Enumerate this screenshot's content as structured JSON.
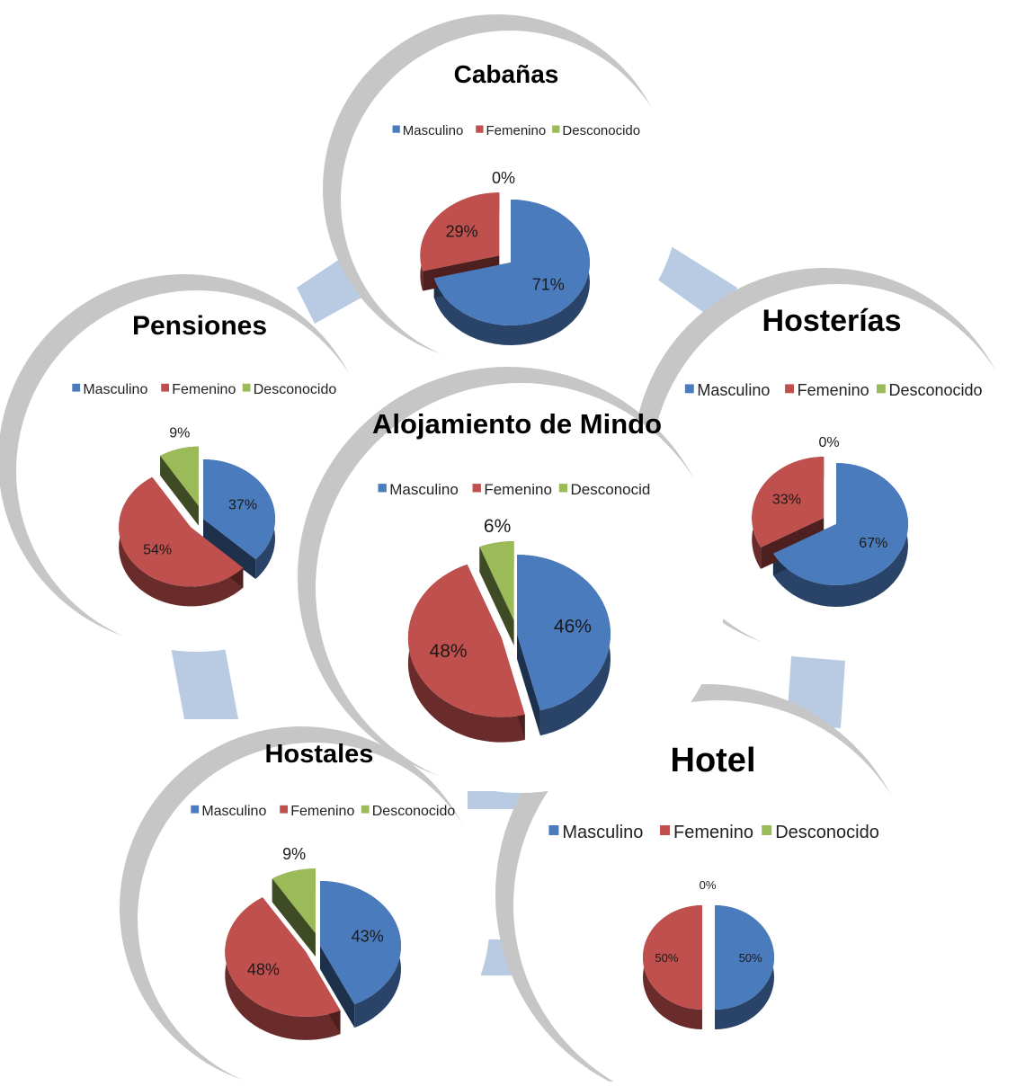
{
  "colors": {
    "masculino": "#4a7bbd",
    "femenino": "#c0504d",
    "desconocido": "#9bbb59",
    "bubble_rim": "#c6c6c6",
    "connector": "#b9cbe3"
  },
  "chart_data": [
    {
      "id": "cabanas",
      "type": "pie",
      "title": "Cabañas",
      "legend": [
        "Masculino",
        "Femenino",
        "Desconocido"
      ],
      "labels": [
        "Masculino",
        "Femenino",
        "Desconocido"
      ],
      "values": [
        71,
        29,
        0
      ],
      "value_labels": [
        "71%",
        "29%",
        "0%"
      ]
    },
    {
      "id": "pensiones",
      "type": "pie",
      "title": "Pensiones",
      "legend": [
        "Masculino",
        "Femenino",
        "Desconocido"
      ],
      "labels": [
        "Masculino",
        "Femenino",
        "Desconocido"
      ],
      "values": [
        37,
        54,
        9
      ],
      "value_labels": [
        "37%",
        "54%",
        "9%"
      ]
    },
    {
      "id": "hosterias",
      "type": "pie",
      "title": "Hosterías",
      "legend": [
        "Masculino",
        "Femenino",
        "Desconocido"
      ],
      "labels": [
        "Masculino",
        "Femenino",
        "Desconocido"
      ],
      "values": [
        67,
        33,
        0
      ],
      "value_labels": [
        "67%",
        "33%",
        "0%"
      ]
    },
    {
      "id": "mindo",
      "type": "pie",
      "title": "Alojamiento de Mindo",
      "legend": [
        "Masculino",
        "Femenino",
        "Desconocid"
      ],
      "labels": [
        "Masculino",
        "Femenino",
        "Desconocido"
      ],
      "values": [
        46,
        48,
        6
      ],
      "value_labels": [
        "46%",
        "48%",
        "6%"
      ]
    },
    {
      "id": "hostales",
      "type": "pie",
      "title": "Hostales",
      "legend": [
        "Masculino",
        "Femenino",
        "Desconocido"
      ],
      "labels": [
        "Masculino",
        "Femenino",
        "Desconocido"
      ],
      "values": [
        43,
        48,
        9
      ],
      "value_labels": [
        "43%",
        "48%",
        "9%"
      ]
    },
    {
      "id": "hotel",
      "type": "pie",
      "title": "Hotel",
      "legend": [
        "Masculino",
        "Femenino",
        "Desconocido"
      ],
      "labels": [
        "Masculino",
        "Femenino",
        "Desconocido"
      ],
      "values": [
        50,
        50,
        0
      ],
      "value_labels": [
        "50%",
        "50%",
        "0%"
      ]
    }
  ]
}
